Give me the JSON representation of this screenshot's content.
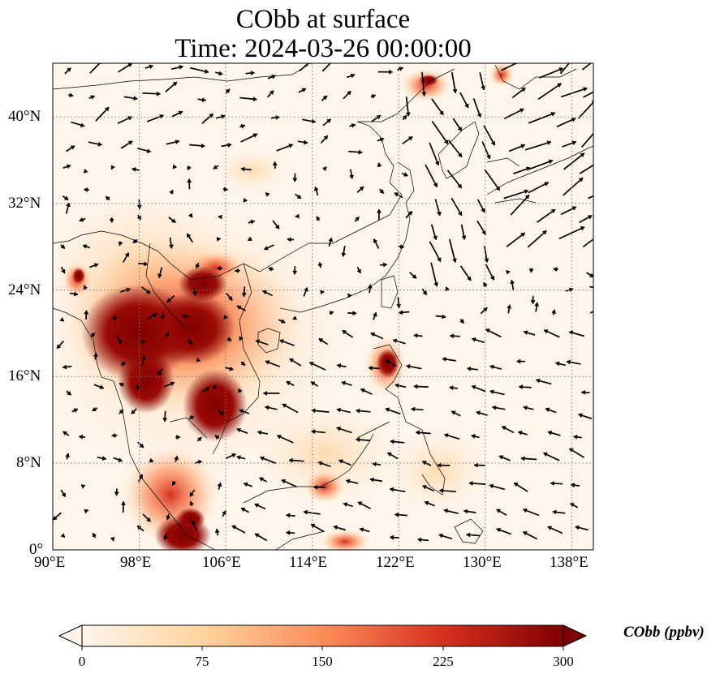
{
  "title": {
    "line1": "CObb at surface",
    "line2": "Time: 2024-03-26 00:00:00"
  },
  "map": {
    "variable": "CObb",
    "level": "surface",
    "lon_range": [
      90,
      140
    ],
    "lat_range": [
      0,
      45
    ],
    "gridlines": "dotted",
    "lon_ticks": [
      "90°E",
      "98°E",
      "106°E",
      "114°E",
      "122°E",
      "130°E",
      "138°E"
    ],
    "lat_ticks": [
      "0°",
      "8°N",
      "16°N",
      "24°N",
      "32°N",
      "40°N"
    ],
    "overlay": "wind vectors (black arrows)",
    "colormap": [
      "#fff5eb",
      "#fdd49e",
      "#fc8d59",
      "#d7301f",
      "#7f0000"
    ]
  },
  "colorbar": {
    "label": "CObb (ppbv)",
    "ticks": [
      "0",
      "75",
      "150",
      "225",
      "300"
    ],
    "min": 0,
    "max": 300,
    "extend": "both"
  }
}
